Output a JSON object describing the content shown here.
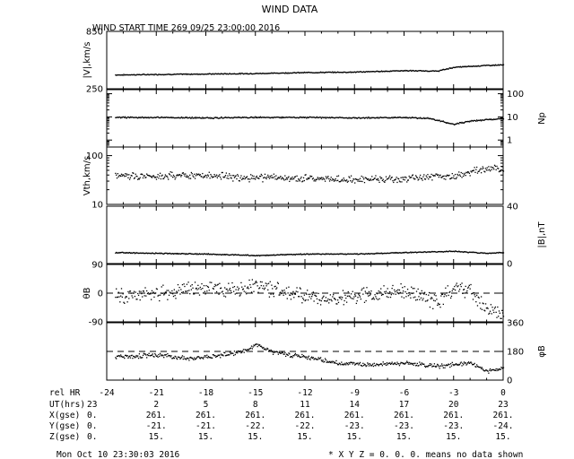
{
  "page_title": "WIND DATA",
  "subtitle": "WIND START TIME 269 09/25 23:00:00 2016",
  "footer_left": "Mon Oct 10 23:30:03 2016",
  "footer_right": "* X Y Z = 0. 0. 0. means no data shown",
  "colors": {
    "ink": "#000000",
    "background": "#ffffff"
  },
  "chart_data": {
    "type": "scatter",
    "x_label": "rel HR",
    "xlim": [
      -24,
      0
    ],
    "x_ticks": [
      -24,
      -21,
      -18,
      -15,
      -12,
      -9,
      -6,
      -3,
      0
    ],
    "x_tick_labels": [
      "-24",
      "-21",
      "-18",
      "-15",
      "-12",
      "-9",
      "-6",
      "-3",
      "0"
    ],
    "ephemeris": [
      {
        "label": "UT(hrs)",
        "values": [
          "23",
          "2",
          "5",
          "8",
          "11",
          "14",
          "17",
          "20",
          "23"
        ]
      },
      {
        "label": "X(gse)",
        "values": [
          "0.",
          "261.",
          "261.",
          "261.",
          "261.",
          "261.",
          "261.",
          "261.",
          "261."
        ]
      },
      {
        "label": "Y(gse)",
        "values": [
          "0.",
          "-21.",
          "-21.",
          "-22.",
          "-22.",
          "-23.",
          "-23.",
          "-23.",
          "-24."
        ]
      },
      {
        "label": "Z(gse)",
        "values": [
          "0.",
          "15.",
          "15.",
          "15.",
          "15.",
          "15.",
          "15.",
          "15.",
          "15."
        ]
      }
    ],
    "panels": [
      {
        "name": "speed",
        "label": "|V|,km/s",
        "label_side": "left",
        "scale": "linear",
        "ylim": [
          250,
          850
        ],
        "tick_labels": [
          {
            "value": 850,
            "text": "850"
          },
          {
            "value": 250,
            "text": "250"
          }
        ],
        "series": [
          {
            "x": [
              -23.5,
              -21,
              -18,
              -15,
              -12,
              -9,
              -6,
              -4,
              -3,
              -1,
              0
            ],
            "y": [
              400,
              405,
              410,
              415,
              425,
              430,
              445,
              440,
              480,
              500,
              505
            ]
          }
        ]
      },
      {
        "name": "density",
        "label": "Np",
        "label_side": "right",
        "scale": "log",
        "ylim": [
          0.5,
          150
        ],
        "tick_labels": [
          {
            "value": 100,
            "text": "100"
          },
          {
            "value": 10,
            "text": "10"
          },
          {
            "value": 1,
            "text": "1"
          }
        ],
        "series": [
          {
            "x": [
              -23.5,
              -21,
              -18,
              -15,
              -12,
              -9,
              -6,
              -4.5,
              -3.5,
              -3,
              -2,
              0
            ],
            "y": [
              10,
              10,
              9.5,
              10,
              10,
              9.5,
              10,
              9,
              6,
              5,
              7,
              9
            ]
          }
        ]
      },
      {
        "name": "thermal_speed",
        "label": "Vth,km/s",
        "label_side": "left",
        "scale": "log",
        "ylim": [
          10,
          150
        ],
        "tick_labels": [
          {
            "value": 100,
            "text": "100"
          },
          {
            "value": 10,
            "text": "10"
          }
        ],
        "series": [
          {
            "x": [
              -23.5,
              -21,
              -18,
              -15,
              -12,
              -9,
              -6,
              -3,
              -1,
              0
            ],
            "y": [
              40,
              39,
              40,
              36,
              35,
              33,
              35,
              40,
              55,
              53
            ]
          }
        ]
      },
      {
        "name": "b_magnitude",
        "label": "|B|,nT",
        "label_side": "right",
        "scale": "linear",
        "ylim": [
          0,
          40
        ],
        "tick_labels": [
          {
            "value": 40,
            "text": "40"
          },
          {
            "value": 0,
            "text": "0"
          }
        ],
        "series": [
          {
            "x": [
              -23.5,
              -21,
              -18,
              -15,
              -12,
              -9,
              -6,
              -3,
              -1,
              0
            ],
            "y": [
              8,
              7.5,
              7,
              6,
              7,
              7,
              8,
              9,
              7.5,
              8
            ]
          }
        ]
      },
      {
        "name": "b_theta",
        "label": "θB",
        "label_side": "left",
        "scale": "linear",
        "ylim": [
          -90,
          90
        ],
        "reference_line": 0,
        "tick_labels": [
          {
            "value": 90,
            "text": "90"
          },
          {
            "value": 0,
            "text": "0"
          },
          {
            "value": -90,
            "text": "-90"
          }
        ],
        "series": [
          {
            "x": [
              -23.5,
              -22,
              -20,
              -18,
              -16,
              -15,
              -14,
              -12,
              -10,
              -8,
              -6,
              -4,
              -3,
              -2,
              -1,
              0
            ],
            "y": [
              -10,
              0,
              5,
              20,
              10,
              30,
              15,
              -10,
              -15,
              0,
              5,
              -25,
              20,
              10,
              -50,
              -70
            ]
          }
        ]
      },
      {
        "name": "b_phi",
        "label": "φB",
        "label_side": "right",
        "scale": "linear",
        "ylim": [
          0,
          360
        ],
        "reference_line": 180,
        "tick_labels": [
          {
            "value": 360,
            "text": "360"
          },
          {
            "value": 180,
            "text": "180"
          },
          {
            "value": 0,
            "text": "0"
          }
        ],
        "series": [
          {
            "x": [
              -23.5,
              -21,
              -19,
              -17,
              -15.5,
              -15,
              -14,
              -13,
              -12,
              -10,
              -8,
              -6,
              -4,
              -3,
              -2,
              -1,
              0
            ],
            "y": [
              150,
              160,
              140,
              160,
              190,
              230,
              180,
              160,
              150,
              110,
              100,
              110,
              90,
              100,
              110,
              60,
              80
            ]
          }
        ]
      }
    ]
  }
}
